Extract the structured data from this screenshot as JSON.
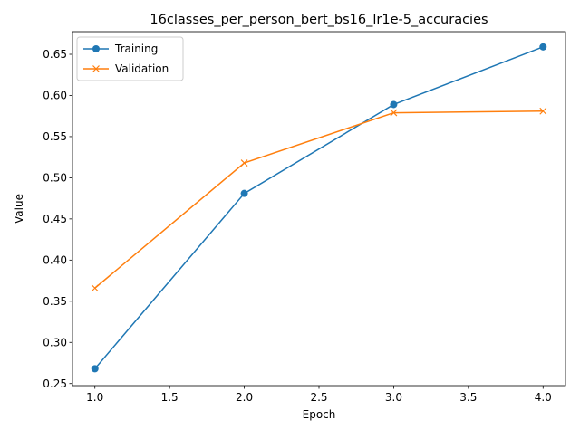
{
  "chart_data": {
    "type": "line",
    "title": "16classes_per_person_bert_bs16_lr1e-5_accuracies",
    "xlabel": "Epoch",
    "ylabel": "Value",
    "xlim": [
      0.85,
      4.15
    ],
    "ylim": [
      0.2475,
      0.6775
    ],
    "x_ticks": [
      1.0,
      1.5,
      2.0,
      2.5,
      3.0,
      3.5,
      4.0
    ],
    "x_tick_labels": [
      "1.0",
      "1.5",
      "2.0",
      "2.5",
      "3.0",
      "3.5",
      "4.0"
    ],
    "y_ticks": [
      0.25,
      0.3,
      0.35,
      0.4,
      0.45,
      0.5,
      0.55,
      0.6,
      0.65
    ],
    "y_tick_labels": [
      "0.25",
      "0.30",
      "0.35",
      "0.40",
      "0.45",
      "0.50",
      "0.55",
      "0.60",
      "0.65"
    ],
    "grid": false,
    "legend": "top-left",
    "x": [
      1,
      2,
      3,
      4
    ],
    "series": [
      {
        "name": "Training",
        "values": [
          0.268,
          0.481,
          0.589,
          0.659
        ],
        "color": "#1f77b4",
        "marker": "circle"
      },
      {
        "name": "Validation",
        "values": [
          0.366,
          0.518,
          0.579,
          0.581
        ],
        "color": "#ff7f0e",
        "marker": "x"
      }
    ]
  }
}
